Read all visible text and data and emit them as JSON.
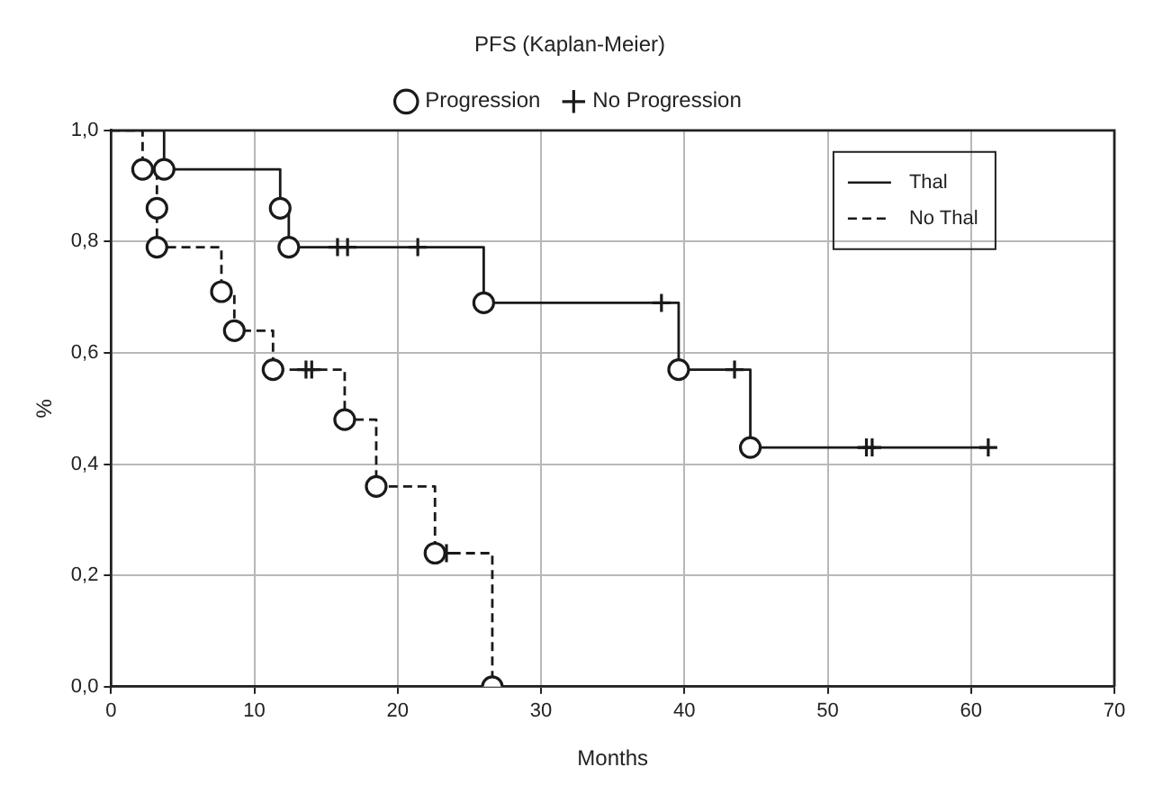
{
  "chart_data": {
    "type": "step",
    "title": "PFS (Kaplan-Meier)",
    "xlabel": "Months",
    "ylabel": "%",
    "xlim": [
      0,
      70
    ],
    "xticks": [
      0,
      10,
      20,
      30,
      40,
      50,
      60,
      70
    ],
    "ylim": [
      0,
      1
    ],
    "yticks": [
      {
        "value": 0,
        "label": "0,0"
      },
      {
        "value": 0.2,
        "label": "0,2"
      },
      {
        "value": 0.4,
        "label": "0,4"
      },
      {
        "value": 0.6,
        "label": "0,6"
      },
      {
        "value": 0.8,
        "label": "0,8"
      },
      {
        "value": 1,
        "label": "1,0"
      }
    ],
    "grid": true,
    "legend": "top",
    "series": [
      {
        "name": "Thal",
        "color": "#1a1a1a",
        "line_style": "solid",
        "marker": "none",
        "x": [
          0,
          3.7,
          11.8,
          12.4,
          26,
          39.6,
          44.6,
          61.2
        ],
        "values": [
          1,
          0.93,
          0.86,
          0.79,
          0.69,
          0.57,
          0.43,
          0.43
        ]
      },
      {
        "name": "No Thal",
        "color": "#1a1a1a",
        "line_style": "dashed",
        "marker": "none",
        "x": [
          0,
          2.2,
          3.2,
          3.2,
          7.7,
          8.6,
          11.3,
          16.3,
          18.5,
          22.6,
          26.6
        ],
        "values": [
          1,
          0.93,
          0.86,
          0.79,
          0.71,
          0.64,
          0.57,
          0.48,
          0.36,
          0.24,
          0
        ]
      },
      {
        "name": "Progression",
        "type": "scatter",
        "color": "#1a1a1a",
        "marker": "circle",
        "x": [
          3.7,
          11.8,
          12.4,
          26,
          39.6,
          44.6,
          2.2,
          3.2,
          3.2,
          7.7,
          8.6,
          11.3,
          16.3,
          18.5,
          22.6,
          26.6
        ],
        "values": [
          0.93,
          0.86,
          0.79,
          0.69,
          0.57,
          0.43,
          0.93,
          0.86,
          0.79,
          0.71,
          0.64,
          0.57,
          0.48,
          0.36,
          0.24,
          0
        ]
      },
      {
        "name": "No Progression",
        "type": "scatter",
        "color": "#1a1a1a",
        "marker": "cross",
        "x": [
          15.8,
          16.5,
          21.4,
          38.4,
          43.5,
          52.7,
          53.1,
          61.2,
          13.6,
          14.0,
          23.4
        ],
        "values": [
          0.79,
          0.79,
          0.79,
          0.69,
          0.57,
          0.43,
          0.43,
          0.43,
          0.57,
          0.57,
          0.24
        ]
      }
    ]
  }
}
